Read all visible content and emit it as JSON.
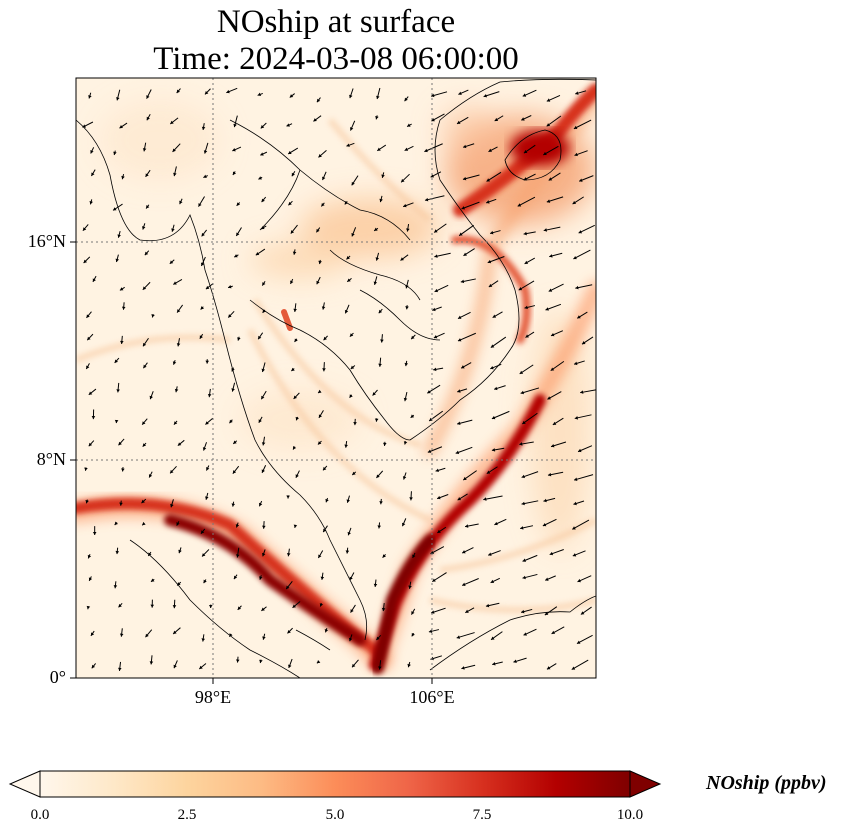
{
  "title": {
    "line1": "NOship at surface",
    "line2": "Time: 2024-03-08 06:00:00"
  },
  "axes": {
    "lat_ticks": [
      "16°N",
      "8°N",
      "0°"
    ],
    "lon_ticks": [
      "98°E",
      "106°E"
    ],
    "lon_range": [
      93,
      112
    ],
    "lat_range": [
      0,
      22
    ]
  },
  "colorbar": {
    "label": "NOship (ppbv)",
    "ticks": [
      "0.0",
      "2.5",
      "5.0",
      "7.5",
      "10.0"
    ],
    "range": [
      0,
      10
    ],
    "extend": "both",
    "colormap": "OrRd",
    "colors": [
      "#fff7ec",
      "#fee8c8",
      "#fdd49e",
      "#fdbb84",
      "#fc8d59",
      "#ef6548",
      "#d7301f",
      "#b30000",
      "#7f0000"
    ]
  },
  "gridlines": {
    "style": "dotted",
    "color": "#777777"
  },
  "vectors": {
    "color": "#000000",
    "description": "wind arrows"
  }
}
